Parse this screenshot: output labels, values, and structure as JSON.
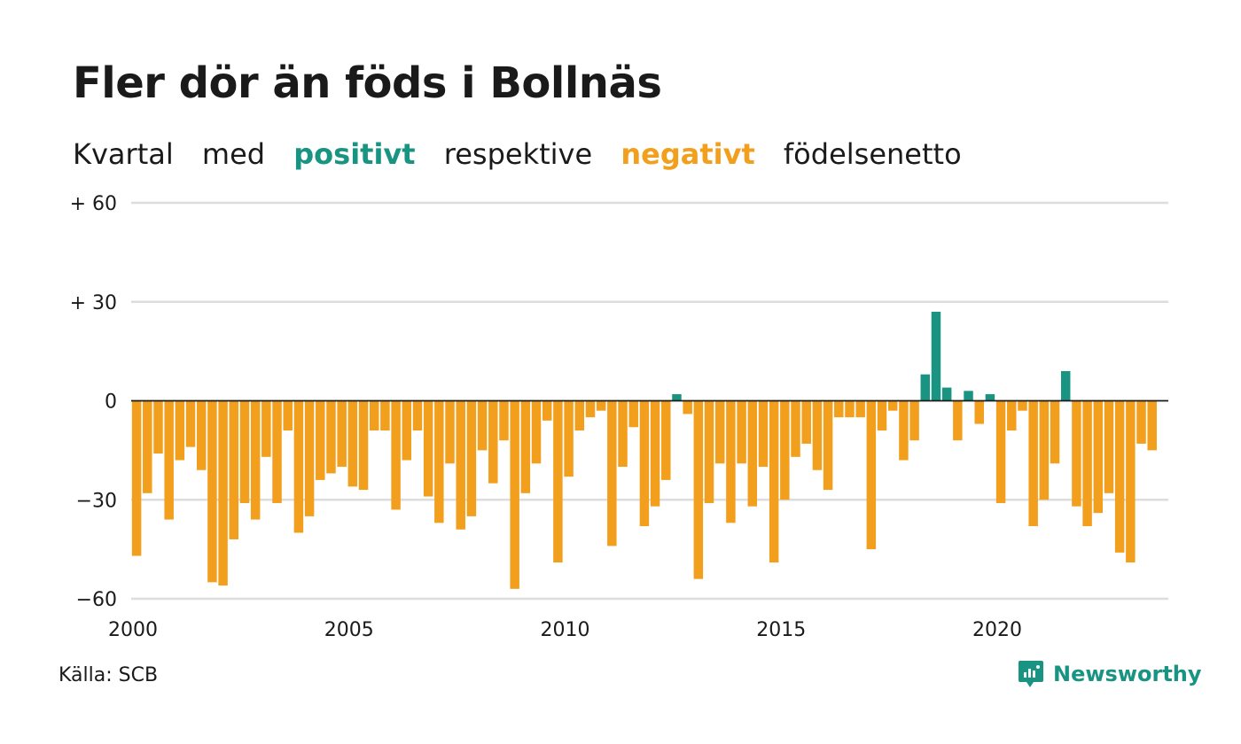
{
  "header": {
    "title": "Fler dör än föds i Bollnäs",
    "subtitle_parts": [
      "Kvartal",
      "med",
      "positivt",
      "respektive",
      "negativt",
      "födelsenetto"
    ]
  },
  "footer": {
    "source": "Källa: SCB",
    "brand": "Newsworthy"
  },
  "colors": {
    "positive": "#1a9482",
    "negative": "#f29f1d",
    "grid": "#dddddd",
    "zero_line": "#1a1a1a"
  },
  "chart_data": {
    "type": "bar",
    "x_start": 2000,
    "x_step": 0.25,
    "x_ticks": [
      2000,
      2005,
      2010,
      2015,
      2020
    ],
    "x_tick_labels": [
      "2000",
      "2005",
      "2010",
      "2015",
      "2020"
    ],
    "y_ticks": [
      60,
      30,
      0,
      -30,
      -60
    ],
    "y_tick_labels": [
      "+ 60",
      "+ 30",
      "0",
      "−30",
      "−60"
    ],
    "ylim": [
      -60,
      60
    ],
    "xlim": [
      2000,
      2024
    ],
    "grid": true,
    "values": [
      -47,
      -28,
      -16,
      -36,
      -18,
      -14,
      -21,
      -55,
      -56,
      -42,
      -31,
      -36,
      -17,
      -31,
      -9,
      -40,
      -35,
      -24,
      -22,
      -20,
      -26,
      -27,
      -9,
      -9,
      -33,
      -18,
      -9,
      -29,
      -37,
      -19,
      -39,
      -35,
      -15,
      -25,
      -12,
      -57,
      -28,
      -19,
      -6,
      -49,
      -23,
      -9,
      -5,
      -3,
      -44,
      -20,
      -8,
      -38,
      -32,
      -24,
      2,
      -4,
      -54,
      -31,
      -19,
      -37,
      -19,
      -32,
      -20,
      -49,
      -30,
      -17,
      -13,
      -21,
      -27,
      -5,
      -5,
      -5,
      -45,
      -9,
      -3,
      -18,
      -12,
      8,
      27,
      4,
      -12,
      3,
      -7,
      2,
      -31,
      -9,
      -3,
      -38,
      -30,
      -19,
      9,
      -32,
      -38,
      -34,
      -28,
      -46,
      -49,
      -13,
      -15
    ]
  }
}
